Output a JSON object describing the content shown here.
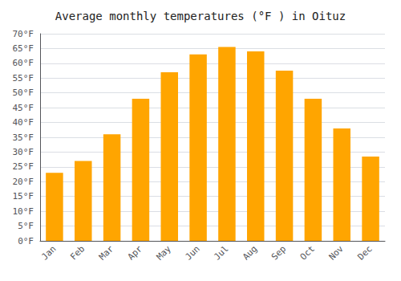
{
  "chart_data": {
    "type": "bar",
    "title": "Average monthly temperatures (°F ) in Oituz",
    "categories": [
      "Jan",
      "Feb",
      "Mar",
      "Apr",
      "May",
      "Jun",
      "Jul",
      "Aug",
      "Sep",
      "Oct",
      "Nov",
      "Dec"
    ],
    "values": [
      23,
      27,
      36,
      48,
      57,
      63,
      65.5,
      64,
      57.5,
      48,
      38,
      28.5
    ],
    "color": "#FFA500",
    "ylim": [
      0,
      70
    ],
    "yticks": [
      {
        "value": 0,
        "label": "0°F"
      },
      {
        "value": 5,
        "label": "5°F"
      },
      {
        "value": 10,
        "label": "10°F"
      },
      {
        "value": 15,
        "label": "15°F"
      },
      {
        "value": 20,
        "label": "20°F"
      },
      {
        "value": 25,
        "label": "25°F"
      },
      {
        "value": 30,
        "label": "30°F"
      },
      {
        "value": 35,
        "label": "35°F"
      },
      {
        "value": 40,
        "label": "40°F"
      },
      {
        "value": 45,
        "label": "45°F"
      },
      {
        "value": 50,
        "label": "50°F"
      },
      {
        "value": 55,
        "label": "55°F"
      },
      {
        "value": 60,
        "label": "60°F"
      },
      {
        "value": 65,
        "label": "65°F"
      },
      {
        "value": 70,
        "label": "70°F"
      }
    ],
    "grid": true
  }
}
